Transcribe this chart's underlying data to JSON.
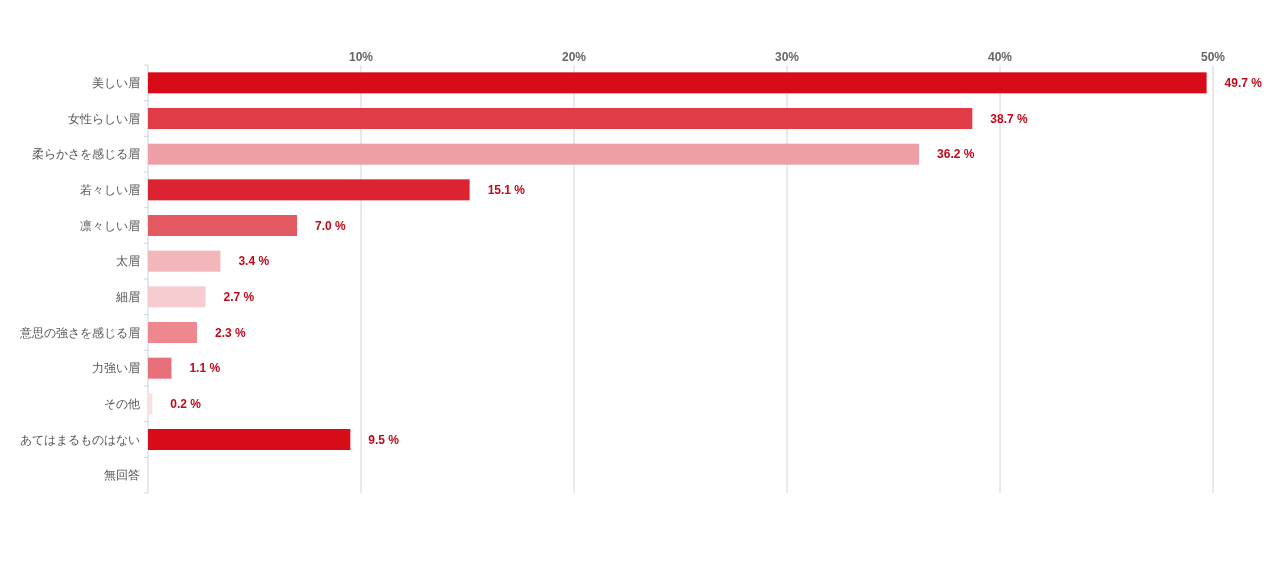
{
  "chart_data": {
    "type": "bar",
    "orientation": "horizontal",
    "categories": [
      "美しい眉",
      "女性らしい眉",
      "柔らかさを感じる眉",
      "若々しい眉",
      "凛々しい眉",
      "太眉",
      "細眉",
      "意思の強さを感じる眉",
      "力強い眉",
      "その他",
      "あてはまるものはない",
      "無回答"
    ],
    "values": [
      49.7,
      38.7,
      36.2,
      15.1,
      7.0,
      3.4,
      2.7,
      2.3,
      1.1,
      0.2,
      9.5,
      null
    ],
    "value_labels": [
      "49.7 %",
      "38.7 %",
      "36.2 %",
      "15.1 %",
      "7.0 %",
      "3.4 %",
      "2.7 %",
      "2.3 %",
      "1.1 %",
      "0.2 %",
      "9.5 %",
      null
    ],
    "colors": [
      "#d80c18",
      "#e03c48",
      "#ee9fa5",
      "#dc2332",
      "#e45a63",
      "#f3b6ba",
      "#f7ccd0",
      "#ee888e",
      "#e8707a",
      "#fae0e2",
      "#d80c18",
      null
    ],
    "xlim": [
      0,
      50
    ],
    "xticks": [
      {
        "value": 10,
        "label": "10%"
      },
      {
        "value": 20,
        "label": "20%"
      },
      {
        "value": 30,
        "label": "30%"
      },
      {
        "value": 40,
        "label": "40%"
      },
      {
        "value": 50,
        "label": "50%"
      }
    ],
    "grid": "x"
  }
}
